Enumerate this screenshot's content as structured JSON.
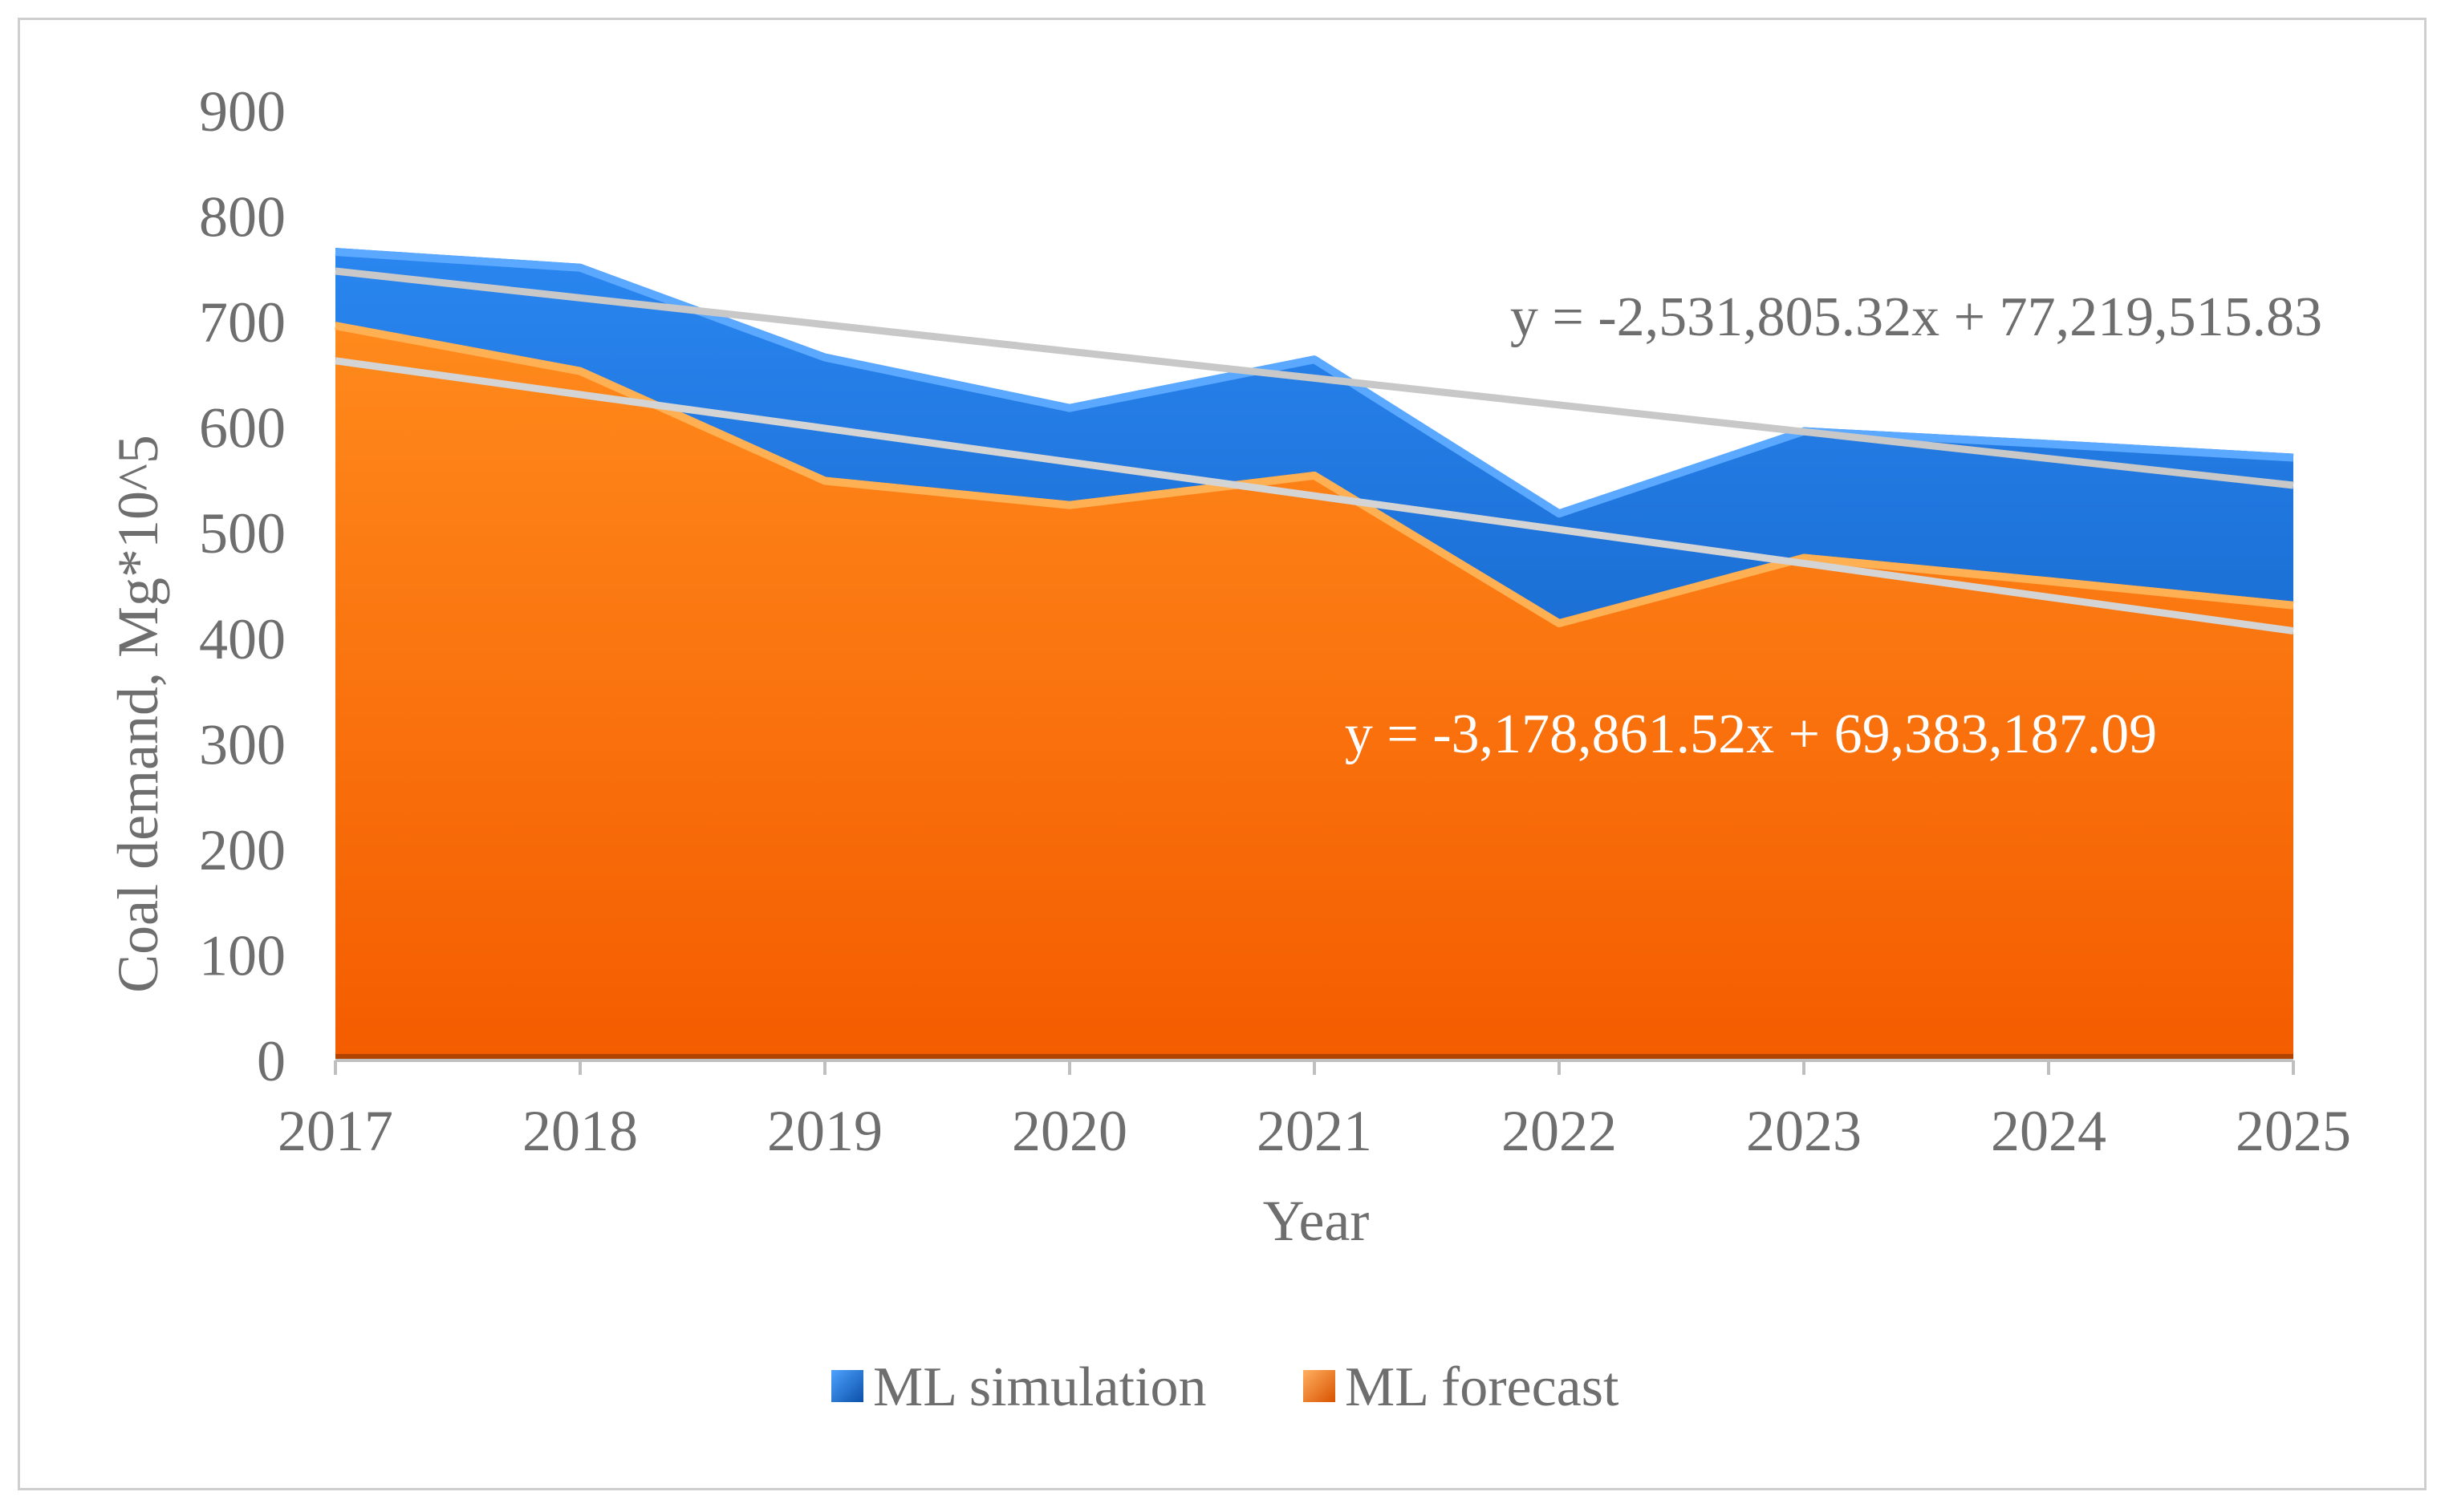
{
  "chart_data": {
    "type": "area",
    "title": "",
    "xlabel": "Year",
    "ylabel": "Coal demand, Mg*10^5",
    "categories": [
      "2017",
      "2018",
      "2019",
      "2020",
      "2021",
      "2022",
      "2023",
      "2024",
      "2025"
    ],
    "ylim": [
      0,
      900
    ],
    "yticks": [
      0,
      100,
      200,
      300,
      400,
      500,
      600,
      700,
      800,
      900
    ],
    "grid": false,
    "legend_position": "bottom",
    "series": [
      {
        "name": "ML simulation",
        "color": "#1f6fd6",
        "values": [
          770,
          755,
          670,
          622,
          668,
          522,
          600,
          588,
          575
        ]
      },
      {
        "name": "ML forecast",
        "color": "#ff7a12",
        "values": [
          700,
          657,
          553,
          530,
          558,
          418,
          480,
          458,
          435
        ]
      }
    ],
    "trendlines": [
      {
        "series": "ML simulation",
        "equation": "y = -2,531,805.32x + 77,219,515.83",
        "start": 748,
        "end": 545,
        "color": "#c8c8c8"
      },
      {
        "series": "ML forecast",
        "equation": "y = -3,178,861.52x + 69,383,187.09",
        "start": 663,
        "end": 407,
        "color": "#d4d4d4"
      }
    ],
    "annotation_colors": {
      "simulation_equation": "#6e6e6e",
      "forecast_equation": "#ffffff"
    }
  }
}
